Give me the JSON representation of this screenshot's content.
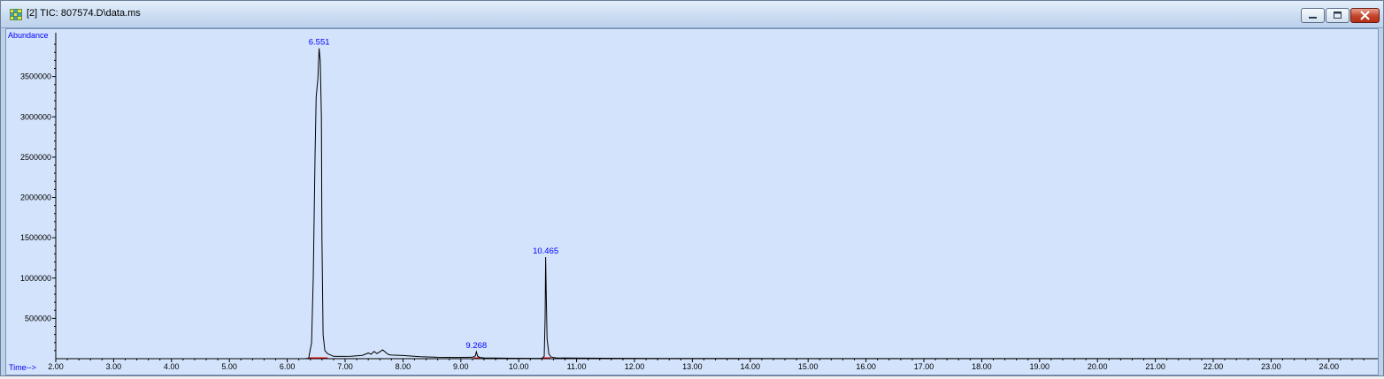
{
  "window": {
    "title": "[2] TIC: 807574.D\\data.ms",
    "app_icon": "grid-icon",
    "buttons": {
      "minimize": "minimize-icon",
      "maximize": "maximize-icon",
      "close": "close-icon"
    }
  },
  "chart_data": {
    "type": "line",
    "ylabel": "Abundance",
    "xlabel": "Time-->",
    "xlim": [
      2.0,
      25.2
    ],
    "ylim": [
      0,
      4000000
    ],
    "x_ticks": [
      "2.00",
      "3.00",
      "4.00",
      "5.00",
      "6.00",
      "7.00",
      "8.00",
      "9.00",
      "10.00",
      "11.00",
      "12.00",
      "13.00",
      "14.00",
      "15.00",
      "16.00",
      "17.00",
      "18.00",
      "19.00",
      "20.00",
      "21.00",
      "22.00",
      "23.00",
      "24.00"
    ],
    "y_ticks": [
      "500000",
      "1000000",
      "1500000",
      "2000000",
      "2500000",
      "3000000",
      "3500000"
    ],
    "peak_labels": [
      "6.551",
      "9.268",
      "10.465"
    ],
    "peaks": [
      {
        "rt": 6.551,
        "label": "6.551",
        "abundance": 3850000
      },
      {
        "rt": 9.268,
        "label": "9.268",
        "abundance": 85000
      },
      {
        "rt": 10.465,
        "label": "10.465",
        "abundance": 1260000
      }
    ],
    "series": [
      {
        "x": [
          2.0,
          6.3,
          6.37,
          6.42,
          6.45,
          6.48,
          6.5,
          6.53,
          6.551,
          6.57,
          6.59,
          6.6,
          6.62,
          6.65,
          6.7,
          6.8,
          6.95,
          7.1,
          7.3,
          7.4,
          7.45,
          7.5,
          7.55,
          7.6,
          7.65,
          7.7,
          7.75,
          7.8,
          8.0,
          8.3,
          8.6,
          8.9,
          9.2,
          9.25,
          9.268,
          9.29,
          9.33,
          9.4,
          9.6,
          9.9,
          10.2,
          10.4,
          10.44,
          10.455,
          10.465,
          10.475,
          10.49,
          10.52,
          10.56,
          10.65,
          10.9,
          11.5,
          12.5,
          13.0,
          13.5,
          14.0,
          24.0,
          25.2
        ],
        "y": [
          0,
          0,
          5000,
          200000,
          1000000,
          2500000,
          3250000,
          3480000,
          3850000,
          3700000,
          3000000,
          1500000,
          300000,
          100000,
          60000,
          30000,
          28000,
          30000,
          42000,
          70000,
          55000,
          90000,
          62000,
          85000,
          110000,
          78000,
          50000,
          45000,
          40000,
          25000,
          18000,
          15000,
          18000,
          35000,
          85000,
          30000,
          15000,
          10000,
          8000,
          6000,
          4000,
          4000,
          30000,
          500000,
          1260000,
          800000,
          250000,
          60000,
          20000,
          10000,
          8000,
          5000,
          3000,
          3000,
          2000,
          2000,
          0,
          0
        ],
        "color": "#000000"
      }
    ],
    "colors": {
      "plot_bg": "#d3e3fb",
      "trace": "#000000",
      "labels": "#0000ff",
      "baseline_marks": "#ff0000"
    }
  }
}
